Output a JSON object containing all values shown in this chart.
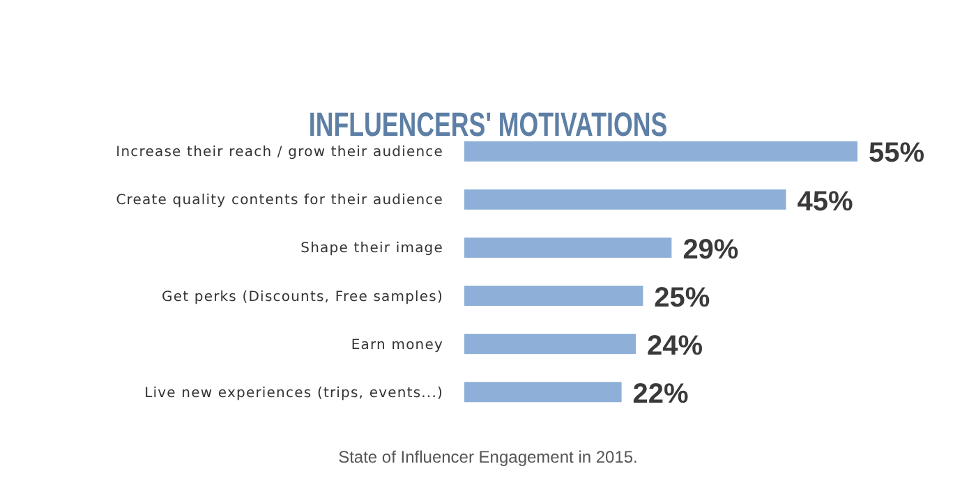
{
  "chart_data": {
    "type": "bar",
    "orientation": "horizontal",
    "title": "INFLUENCERS' MOTIVATIONS",
    "categories": [
      "Increase their reach / grow their audience",
      "Create quality contents for their audience",
      "Shape their image",
      "Get perks (Discounts, Free samples)",
      "Earn money",
      "Live new experiences (trips, events...)"
    ],
    "values": [
      55,
      45,
      29,
      25,
      24,
      22
    ],
    "value_labels": [
      "55%",
      "45%",
      "29%",
      "25%",
      "24%",
      "22%"
    ],
    "color": "#8eb0d8",
    "xlim": [
      0,
      55
    ],
    "annotations": [
      "State of Influencer Engagement in 2015."
    ]
  }
}
